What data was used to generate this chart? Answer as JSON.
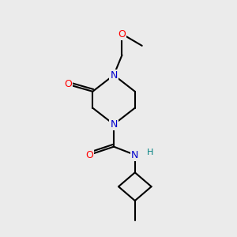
{
  "background_color": "#ebebeb",
  "atom_colors": {
    "C": "#000000",
    "N": "#0000cc",
    "O": "#ff0000",
    "H": "#008080"
  },
  "bond_color": "#000000",
  "bond_width": 1.5,
  "figsize": [
    3.0,
    3.0
  ],
  "dpi": 100
}
